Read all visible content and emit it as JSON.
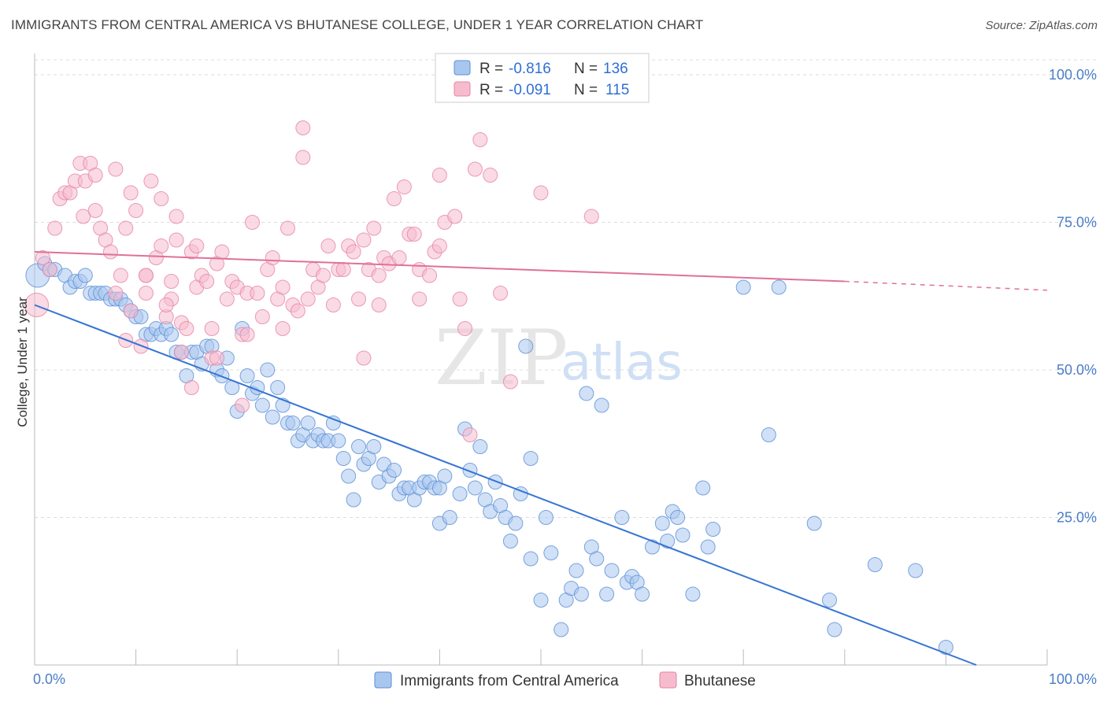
{
  "title": "IMMIGRANTS FROM CENTRAL AMERICA VS BHUTANESE COLLEGE, UNDER 1 YEAR CORRELATION CHART",
  "source": "Source: ZipAtlas.com",
  "watermark": {
    "zip": "ZIP",
    "atlas": "atlas"
  },
  "colors": {
    "blue_fill": "#a9c7ee",
    "blue_stroke": "#5b8fd6",
    "blue_line": "#3575d3",
    "pink_fill": "#f6bccd",
    "pink_stroke": "#e685a4",
    "pink_line": "#e0709a",
    "grid": "#dddddd",
    "tick_text": "#4a7cc7"
  },
  "chart_data": {
    "type": "scatter",
    "title": "IMMIGRANTS FROM CENTRAL AMERICA VS BHUTANESE COLLEGE, UNDER 1 YEAR CORRELATION CHART",
    "xlabel": "",
    "ylabel": "College, Under 1 year",
    "xlim": [
      0,
      100
    ],
    "ylim": [
      0,
      100
    ],
    "x_tick_labels": [
      "0.0%",
      "100.0%"
    ],
    "y_ticks": [
      25,
      50,
      75,
      100
    ],
    "y_tick_labels": [
      "25.0%",
      "50.0%",
      "75.0%",
      "100.0%"
    ],
    "grid": true,
    "legend": {
      "placement": "top-center",
      "entries": [
        {
          "r_label": "R =",
          "r": "-0.816",
          "n_label": "N =",
          "n": "136"
        },
        {
          "r_label": "R =",
          "r": "-0.091",
          "n_label": "N =",
          "n": "115"
        }
      ]
    },
    "series": [
      {
        "name": "Immigrants from Central America",
        "color": "#5b8fd6",
        "trend": {
          "x0": 0,
          "y0": 61,
          "x1": 93,
          "y1": 0
        },
        "points": [
          [
            0.3,
            66
          ],
          [
            1,
            68
          ],
          [
            1.5,
            67
          ],
          [
            2,
            67
          ],
          [
            3,
            66
          ],
          [
            3.5,
            64
          ],
          [
            4,
            65
          ],
          [
            4.5,
            65
          ],
          [
            5,
            66
          ],
          [
            5.5,
            63
          ],
          [
            6,
            63
          ],
          [
            6.5,
            63
          ],
          [
            7,
            63
          ],
          [
            7.5,
            62
          ],
          [
            8,
            62
          ],
          [
            8.5,
            62
          ],
          [
            9,
            61
          ],
          [
            9.5,
            60
          ],
          [
            10,
            59
          ],
          [
            10.5,
            59
          ],
          [
            11,
            56
          ],
          [
            11.5,
            56
          ],
          [
            12,
            57
          ],
          [
            12.5,
            56
          ],
          [
            13,
            57
          ],
          [
            13.5,
            56
          ],
          [
            14,
            53
          ],
          [
            14.5,
            53
          ],
          [
            15,
            49
          ],
          [
            15.5,
            53
          ],
          [
            16,
            53
          ],
          [
            16.5,
            51
          ],
          [
            17,
            54
          ],
          [
            17.5,
            54
          ],
          [
            18,
            50
          ],
          [
            18.5,
            49
          ],
          [
            19,
            52
          ],
          [
            19.5,
            47
          ],
          [
            20,
            43
          ],
          [
            20.5,
            57
          ],
          [
            21,
            49
          ],
          [
            21.5,
            46
          ],
          [
            22,
            47
          ],
          [
            22.5,
            44
          ],
          [
            23,
            50
          ],
          [
            23.5,
            42
          ],
          [
            24,
            47
          ],
          [
            24.5,
            44
          ],
          [
            25,
            41
          ],
          [
            25.5,
            41
          ],
          [
            26,
            38
          ],
          [
            26.5,
            39
          ],
          [
            27,
            41
          ],
          [
            27.5,
            38
          ],
          [
            28,
            39
          ],
          [
            28.5,
            38
          ],
          [
            29,
            38
          ],
          [
            29.5,
            41
          ],
          [
            30,
            38
          ],
          [
            30.5,
            35
          ],
          [
            31,
            32
          ],
          [
            31.5,
            28
          ],
          [
            32,
            37
          ],
          [
            32.5,
            34
          ],
          [
            33,
            35
          ],
          [
            33.5,
            37
          ],
          [
            34,
            31
          ],
          [
            34.5,
            34
          ],
          [
            35,
            32
          ],
          [
            35.5,
            33
          ],
          [
            36,
            29
          ],
          [
            36.5,
            30
          ],
          [
            37,
            30
          ],
          [
            37.5,
            28
          ],
          [
            38,
            30
          ],
          [
            38.5,
            31
          ],
          [
            39,
            31
          ],
          [
            39.5,
            30
          ],
          [
            40,
            30
          ],
          [
            40.5,
            32
          ],
          [
            40,
            24
          ],
          [
            41,
            25
          ],
          [
            42,
            29
          ],
          [
            42.5,
            40
          ],
          [
            43,
            33
          ],
          [
            43.5,
            30
          ],
          [
            44,
            37
          ],
          [
            44.5,
            28
          ],
          [
            45,
            26
          ],
          [
            45.5,
            31
          ],
          [
            46,
            27
          ],
          [
            46.5,
            25
          ],
          [
            47,
            21
          ],
          [
            47.5,
            24
          ],
          [
            48,
            29
          ],
          [
            48.5,
            54
          ],
          [
            49,
            18
          ],
          [
            49,
            35
          ],
          [
            50,
            11
          ],
          [
            50.5,
            25
          ],
          [
            51,
            19
          ],
          [
            52,
            6
          ],
          [
            52.5,
            11
          ],
          [
            53,
            13
          ],
          [
            53.5,
            16
          ],
          [
            54,
            12
          ],
          [
            54.5,
            46
          ],
          [
            55,
            20
          ],
          [
            55.5,
            18
          ],
          [
            56,
            44
          ],
          [
            56.5,
            12
          ],
          [
            57,
            16
          ],
          [
            58,
            25
          ],
          [
            58.5,
            14
          ],
          [
            59,
            15
          ],
          [
            59.5,
            14
          ],
          [
            60,
            12
          ],
          [
            61,
            20
          ],
          [
            62,
            24
          ],
          [
            62.5,
            21
          ],
          [
            63,
            26
          ],
          [
            63.5,
            25
          ],
          [
            64,
            22
          ],
          [
            65,
            12
          ],
          [
            66,
            30
          ],
          [
            66.5,
            20
          ],
          [
            67,
            23
          ],
          [
            70,
            64
          ],
          [
            73.5,
            64
          ],
          [
            72.5,
            39
          ],
          [
            77,
            24
          ],
          [
            78.5,
            11
          ],
          [
            79,
            6
          ],
          [
            83,
            17
          ],
          [
            87,
            16
          ],
          [
            90,
            3
          ]
        ]
      },
      {
        "name": "Bhutanese",
        "color": "#e685a4",
        "trend": {
          "x0": 0,
          "y0": 70,
          "x1": 80,
          "y1": 65,
          "dashed_to_x": 100,
          "dashed_to_y": 63.5
        },
        "points": [
          [
            0.2,
            61
          ],
          [
            0.8,
            69
          ],
          [
            1.5,
            67
          ],
          [
            2,
            74
          ],
          [
            2.5,
            79
          ],
          [
            3,
            80
          ],
          [
            3.5,
            80
          ],
          [
            4,
            82
          ],
          [
            4.5,
            85
          ],
          [
            4.8,
            76
          ],
          [
            5,
            82
          ],
          [
            5.5,
            85
          ],
          [
            6,
            83
          ],
          [
            6,
            77
          ],
          [
            6.5,
            74
          ],
          [
            7,
            72
          ],
          [
            7.5,
            70
          ],
          [
            8,
            63
          ],
          [
            8,
            84
          ],
          [
            8.5,
            66
          ],
          [
            9,
            74
          ],
          [
            9.5,
            80
          ],
          [
            9.5,
            60
          ],
          [
            10,
            77
          ],
          [
            10.5,
            54
          ],
          [
            11,
            66
          ],
          [
            11,
            63
          ],
          [
            11.5,
            82
          ],
          [
            12,
            69
          ],
          [
            12.5,
            71
          ],
          [
            12.5,
            79
          ],
          [
            13,
            59
          ],
          [
            13.5,
            62
          ],
          [
            13.5,
            65
          ],
          [
            14,
            76
          ],
          [
            14,
            72
          ],
          [
            14.5,
            58
          ],
          [
            14.5,
            53
          ],
          [
            15,
            57
          ],
          [
            15.5,
            47
          ],
          [
            15.5,
            70
          ],
          [
            16,
            64
          ],
          [
            16,
            71
          ],
          [
            16.5,
            66
          ],
          [
            17,
            65
          ],
          [
            17.5,
            52
          ],
          [
            17.5,
            57
          ],
          [
            18,
            68
          ],
          [
            18.5,
            70
          ],
          [
            19,
            62
          ],
          [
            19.5,
            65
          ],
          [
            20,
            64
          ],
          [
            20.5,
            56
          ],
          [
            20.5,
            44
          ],
          [
            21,
            63
          ],
          [
            21.5,
            75
          ],
          [
            22,
            63
          ],
          [
            22.5,
            59
          ],
          [
            23,
            67
          ],
          [
            23.5,
            69
          ],
          [
            24,
            62
          ],
          [
            24.5,
            64
          ],
          [
            24.5,
            57
          ],
          [
            25,
            74
          ],
          [
            25.5,
            61
          ],
          [
            26,
            60
          ],
          [
            26.5,
            86
          ],
          [
            26.5,
            91
          ],
          [
            27,
            62
          ],
          [
            27.5,
            67
          ],
          [
            28,
            64
          ],
          [
            28.5,
            66
          ],
          [
            29,
            71
          ],
          [
            29.5,
            61
          ],
          [
            30,
            67
          ],
          [
            30.5,
            67
          ],
          [
            31,
            71
          ],
          [
            31.5,
            70
          ],
          [
            32,
            62
          ],
          [
            32.5,
            52
          ],
          [
            32.5,
            72
          ],
          [
            33,
            67
          ],
          [
            33.5,
            74
          ],
          [
            34,
            66
          ],
          [
            34,
            61
          ],
          [
            34.5,
            69
          ],
          [
            35,
            68
          ],
          [
            35.5,
            79
          ],
          [
            36,
            69
          ],
          [
            36.5,
            81
          ],
          [
            37,
            73
          ],
          [
            37.5,
            73
          ],
          [
            38,
            67
          ],
          [
            38,
            62
          ],
          [
            39,
            66
          ],
          [
            39.5,
            70
          ],
          [
            40,
            71
          ],
          [
            40,
            83
          ],
          [
            40.5,
            75
          ],
          [
            41.5,
            76
          ],
          [
            42,
            62
          ],
          [
            42.5,
            57
          ],
          [
            43,
            39
          ],
          [
            43.5,
            84
          ],
          [
            44,
            89
          ],
          [
            45,
            83
          ],
          [
            46,
            63
          ],
          [
            47,
            48
          ],
          [
            50,
            80
          ],
          [
            55,
            76
          ],
          [
            9,
            55
          ],
          [
            11,
            66
          ],
          [
            13,
            61
          ],
          [
            18,
            52
          ],
          [
            21,
            56
          ]
        ]
      }
    ]
  },
  "bottom_legend": [
    {
      "label": "Immigrants from Central America"
    },
    {
      "label": "Bhutanese"
    }
  ]
}
